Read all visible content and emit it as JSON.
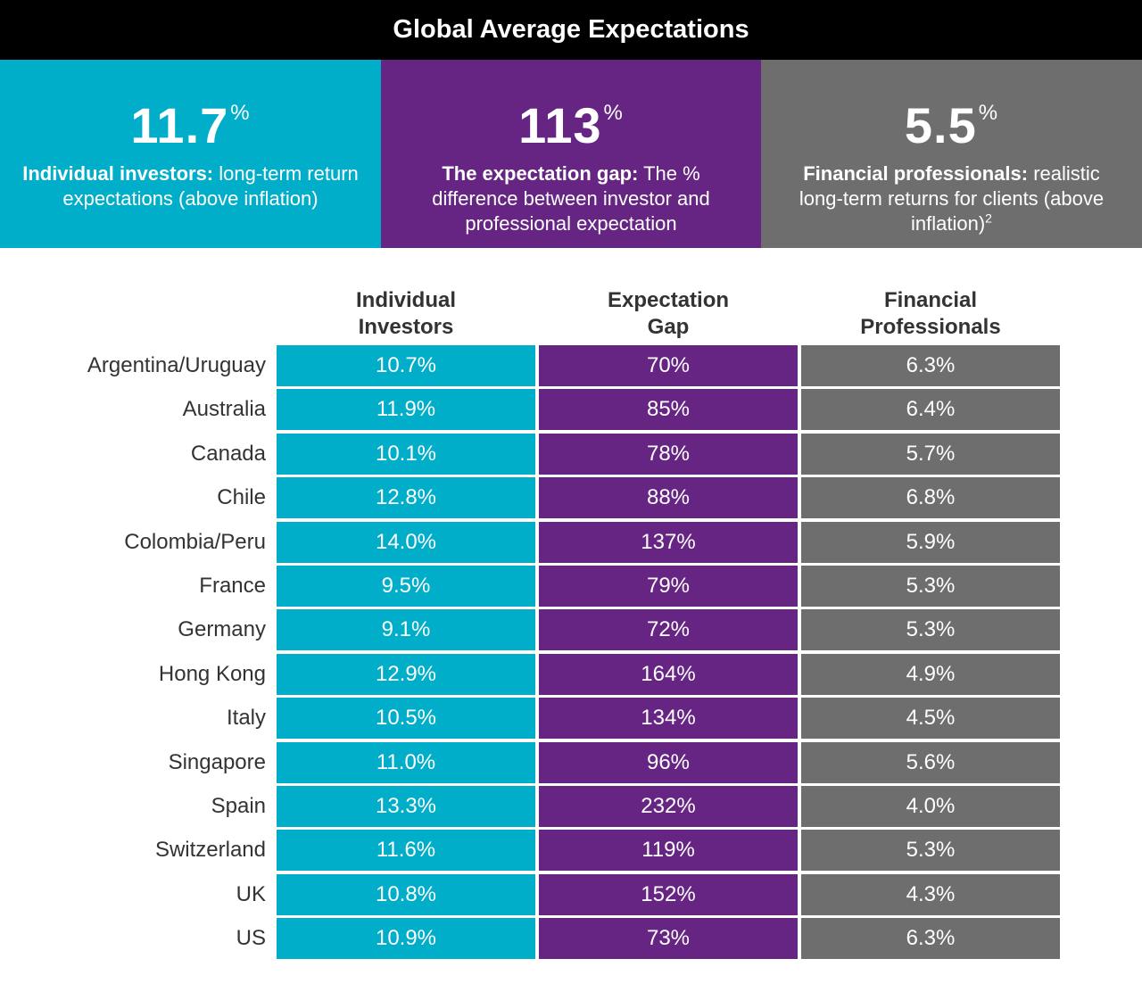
{
  "title": "Global Average Expectations",
  "colors": {
    "individual": "#00aec9",
    "gap": "#662483",
    "professional": "#6d6e6d",
    "title_bar": "#000000"
  },
  "stats": [
    {
      "value": "11.7",
      "unit": "%",
      "bold": "Individual investors:",
      "text": "long-term return expectations (above inflation)",
      "sup": ""
    },
    {
      "value": "113",
      "unit": "%",
      "bold": "The expectation gap:",
      "text": "The % difference between investor and professional expectation",
      "sup": ""
    },
    {
      "value": "5.5",
      "unit": "%",
      "bold": "Financial professionals:",
      "text": "realistic long-term returns for clients (above inflation)",
      "sup": "2"
    }
  ],
  "chart_data": {
    "type": "table",
    "columns": [
      "Individual\nInvestors",
      "Expectation\nGap",
      "Financial\nProfessionals"
    ],
    "rows": [
      {
        "country": "Argentina/Uruguay",
        "values": [
          "10.7%",
          "70%",
          "6.3%"
        ]
      },
      {
        "country": "Australia",
        "values": [
          "11.9%",
          "85%",
          "6.4%"
        ]
      },
      {
        "country": "Canada",
        "values": [
          "10.1%",
          "78%",
          "5.7%"
        ]
      },
      {
        "country": "Chile",
        "values": [
          "12.8%",
          "88%",
          "6.8%"
        ]
      },
      {
        "country": "Colombia/Peru",
        "values": [
          "14.0%",
          "137%",
          "5.9%"
        ]
      },
      {
        "country": "France",
        "values": [
          "9.5%",
          "79%",
          "5.3%"
        ]
      },
      {
        "country": "Germany",
        "values": [
          "9.1%",
          "72%",
          "5.3%"
        ]
      },
      {
        "country": "Hong Kong",
        "values": [
          "12.9%",
          "164%",
          "4.9%"
        ]
      },
      {
        "country": "Italy",
        "values": [
          "10.5%",
          "134%",
          "4.5%"
        ]
      },
      {
        "country": "Singapore",
        "values": [
          "11.0%",
          "96%",
          "5.6%"
        ]
      },
      {
        "country": "Spain",
        "values": [
          "13.3%",
          "232%",
          "4.0%"
        ]
      },
      {
        "country": "Switzerland",
        "values": [
          "11.6%",
          "119%",
          "5.3%"
        ]
      },
      {
        "country": "UK",
        "values": [
          "10.8%",
          "152%",
          "4.3%"
        ]
      },
      {
        "country": "US",
        "values": [
          "10.9%",
          "73%",
          "6.3%"
        ]
      }
    ]
  }
}
